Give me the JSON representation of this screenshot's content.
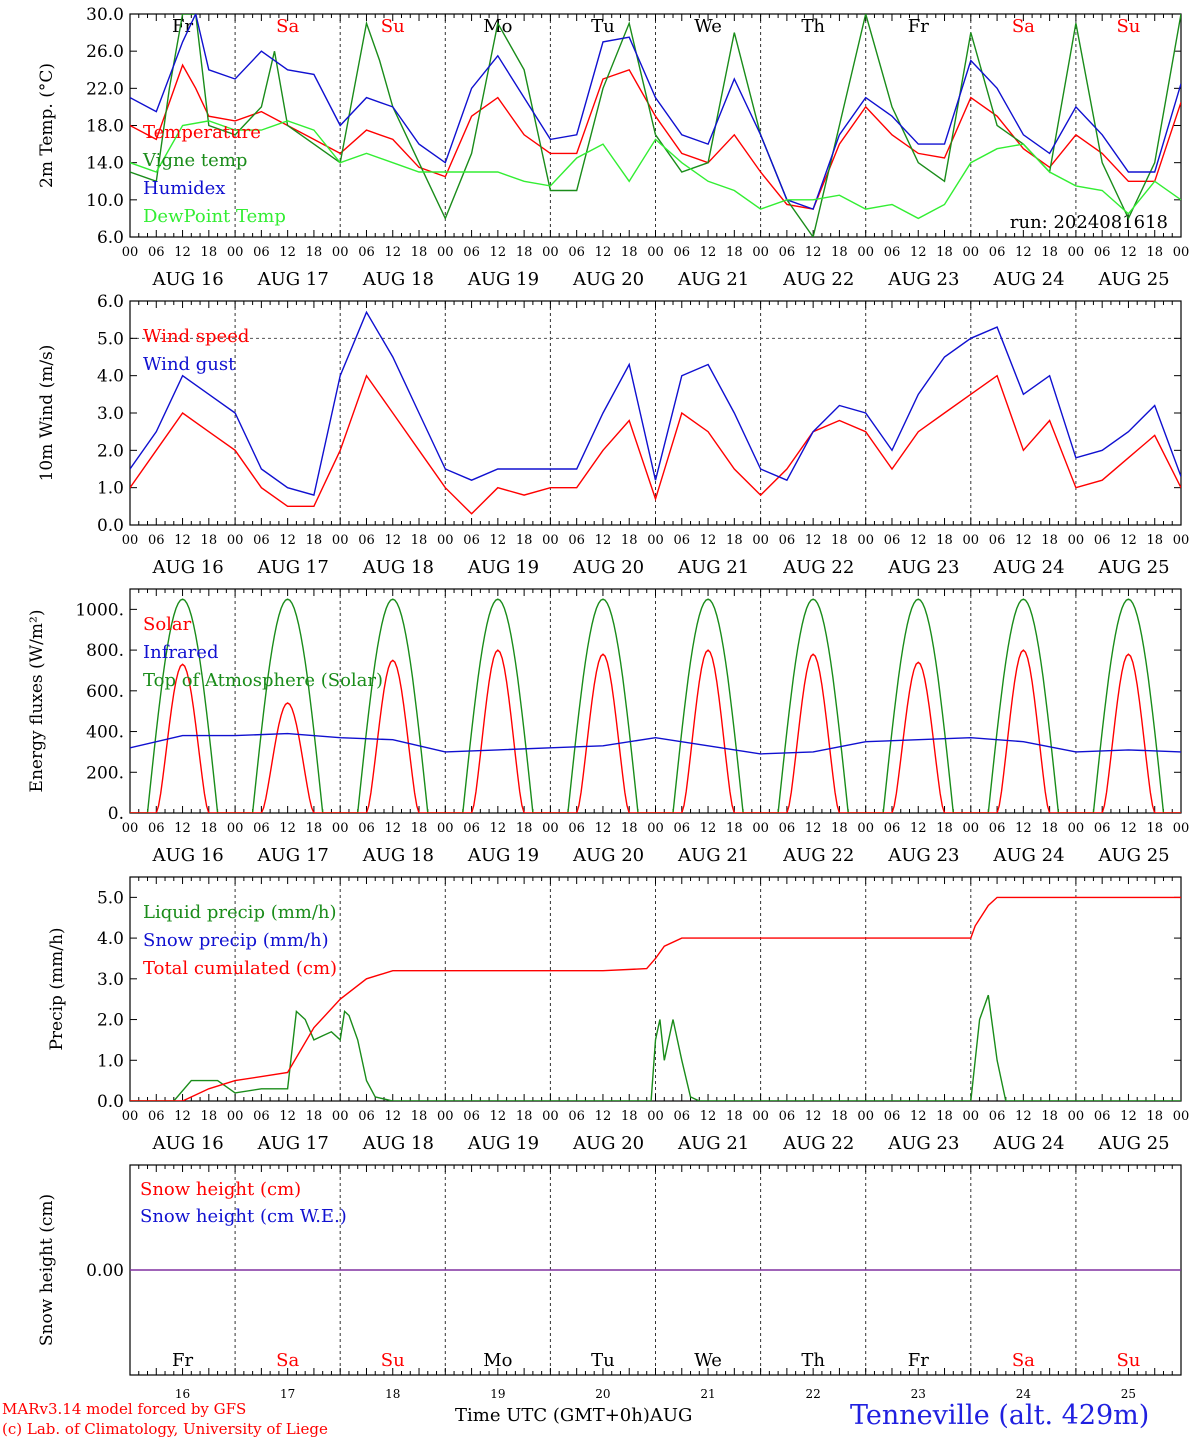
{
  "run_label": "run: 2024081618",
  "footer": {
    "model": "MARv3.14 model forced by GFS",
    "lab": "(c) Lab. of Climatology, University of Liege",
    "xaxis_title": "Time UTC (GMT+0h)",
    "month": "AUG",
    "station": "Tenneville (alt. 429m)"
  },
  "days": {
    "labels": [
      "Fr",
      "Sa",
      "Su",
      "Mo",
      "Tu",
      "We",
      "Th",
      "Fr",
      "Sa",
      "Su"
    ],
    "weekend": [
      false,
      true,
      true,
      false,
      false,
      false,
      false,
      false,
      true,
      true
    ],
    "dates": [
      "AUG 16",
      "AUG 17",
      "AUG 18",
      "AUG 19",
      "AUG 20",
      "AUG 21",
      "AUG 22",
      "AUG 23",
      "AUG 24",
      "AUG 25"
    ],
    "numbers": [
      "16",
      "17",
      "18",
      "19",
      "20",
      "21",
      "22",
      "23",
      "24",
      "25"
    ],
    "hour_ticks": [
      "00",
      "06",
      "12",
      "18"
    ]
  },
  "colors": {
    "red": "#ff0000",
    "green": "#1a8c1a",
    "blue": "#1010d0",
    "lightgreen": "#33ee33",
    "purple": "#8030a0"
  },
  "chart_data": [
    {
      "id": "temp",
      "type": "line",
      "ylabel": "2m Temp. (°C)",
      "ylim": [
        6,
        30
      ],
      "yticks": [
        "6.0",
        "10.0",
        "14.0",
        "18.0",
        "22.0",
        "26.0",
        "30.0"
      ],
      "legend": [
        "Temperature",
        "Vigne temp",
        "Humidex",
        "DewPoint Temp"
      ],
      "series": [
        {
          "name": "Temperature",
          "color": "red",
          "x": [
            0,
            6,
            12,
            15,
            18,
            24,
            30,
            36,
            42,
            48,
            54,
            60,
            66,
            72,
            78,
            84,
            90,
            96,
            102,
            108,
            114,
            120,
            126,
            132,
            138,
            144,
            150,
            156,
            162,
            168,
            174,
            180,
            186,
            192,
            198,
            204,
            210,
            216,
            222,
            228,
            234,
            240
          ],
          "y": [
            18,
            16.5,
            24.5,
            22,
            19,
            18.5,
            19.5,
            18,
            16.5,
            15,
            17.5,
            16.5,
            13.5,
            12.5,
            19,
            21,
            17,
            15,
            15,
            23,
            24,
            19,
            15,
            14,
            17,
            13,
            9.5,
            9,
            16,
            20,
            17,
            15,
            14.5,
            21,
            19,
            15.5,
            13.5,
            17,
            15,
            12,
            12,
            20.5
          ]
        },
        {
          "name": "Vigne temp",
          "color": "green",
          "x": [
            0,
            6,
            9,
            12,
            15,
            18,
            24,
            30,
            33,
            36,
            42,
            48,
            54,
            57,
            60,
            66,
            72,
            78,
            84,
            90,
            96,
            102,
            108,
            114,
            120,
            126,
            132,
            138,
            144,
            150,
            156,
            162,
            168,
            174,
            180,
            186,
            192,
            198,
            204,
            210,
            216,
            222,
            228,
            234,
            240
          ],
          "y": [
            13,
            12,
            22,
            30,
            30,
            18,
            17,
            20,
            26,
            18,
            16,
            14,
            29,
            25,
            20,
            14,
            8,
            15,
            29,
            24,
            11,
            11,
            22,
            29,
            17,
            13,
            14,
            28,
            17,
            10,
            6,
            18,
            30,
            20,
            14,
            12,
            28,
            18,
            16,
            13,
            29,
            14,
            8,
            14,
            30
          ]
        },
        {
          "name": "Humidex",
          "color": "blue",
          "x": [
            0,
            6,
            12,
            15,
            18,
            24,
            30,
            36,
            42,
            48,
            54,
            60,
            66,
            72,
            78,
            84,
            90,
            96,
            102,
            108,
            114,
            120,
            126,
            132,
            138,
            144,
            150,
            156,
            162,
            168,
            174,
            180,
            186,
            192,
            198,
            204,
            210,
            216,
            222,
            228,
            234,
            240
          ],
          "y": [
            21,
            19.5,
            27,
            30,
            24,
            23,
            26,
            24,
            23.5,
            18,
            21,
            20,
            16,
            14,
            22,
            25.5,
            21,
            16.5,
            17,
            27,
            27.5,
            21,
            17,
            16,
            23,
            17,
            10,
            9,
            17,
            21,
            19,
            16,
            16,
            25,
            22,
            17,
            15,
            20,
            17,
            13,
            13,
            22.5
          ]
        },
        {
          "name": "DewPoint Temp",
          "color": "lightgreen",
          "x": [
            0,
            6,
            12,
            18,
            24,
            30,
            36,
            42,
            48,
            54,
            60,
            66,
            72,
            78,
            84,
            90,
            96,
            102,
            108,
            114,
            120,
            126,
            132,
            138,
            144,
            150,
            156,
            162,
            168,
            174,
            180,
            186,
            192,
            198,
            204,
            210,
            216,
            222,
            228,
            234,
            240
          ],
          "y": [
            14,
            13,
            18,
            18.5,
            17.5,
            17.5,
            18.5,
            17.5,
            14,
            15,
            14,
            13,
            13,
            13,
            13,
            12,
            11.5,
            14.5,
            16,
            12,
            16.5,
            14,
            12,
            11,
            9,
            10,
            10,
            10.5,
            9,
            9.5,
            8,
            9.5,
            14,
            15.5,
            16,
            13,
            11.5,
            11,
            8.5,
            12,
            10
          ]
        }
      ]
    },
    {
      "id": "wind",
      "type": "line",
      "ylabel": "10m Wind (m/s)",
      "ylim": [
        0,
        6
      ],
      "yticks": [
        "0.0",
        "1.0",
        "2.0",
        "3.0",
        "4.0",
        "5.0",
        "6.0"
      ],
      "reference_line": 5,
      "legend": [
        "Wind speed",
        "Wind gust"
      ],
      "series": [
        {
          "name": "Wind speed",
          "color": "red",
          "x": [
            0,
            6,
            12,
            18,
            24,
            30,
            36,
            42,
            48,
            54,
            60,
            66,
            72,
            78,
            84,
            90,
            96,
            102,
            108,
            114,
            120,
            126,
            132,
            138,
            144,
            150,
            156,
            162,
            168,
            174,
            180,
            186,
            192,
            198,
            204,
            210,
            216,
            222,
            228,
            234,
            240
          ],
          "y": [
            1,
            2,
            3,
            2.5,
            2,
            1,
            0.5,
            0.5,
            2,
            4,
            3,
            2,
            1,
            0.3,
            1,
            0.8,
            1,
            1,
            2,
            2.8,
            0.7,
            3,
            2.5,
            1.5,
            0.8,
            1.5,
            2.5,
            2.8,
            2.5,
            1.5,
            2.5,
            3,
            3.5,
            4,
            2,
            2.8,
            1,
            1.2,
            1.8,
            2.4,
            1
          ]
        },
        {
          "name": "Wind gust",
          "color": "blue",
          "x": [
            0,
            6,
            12,
            18,
            24,
            30,
            36,
            42,
            48,
            54,
            60,
            66,
            72,
            78,
            84,
            90,
            96,
            102,
            108,
            114,
            120,
            126,
            132,
            138,
            144,
            150,
            156,
            162,
            168,
            174,
            180,
            186,
            192,
            198,
            204,
            210,
            216,
            222,
            228,
            234,
            240
          ],
          "y": [
            1.5,
            2.5,
            4,
            3.5,
            3,
            1.5,
            1,
            0.8,
            4,
            5.7,
            4.5,
            3,
            1.5,
            1.2,
            1.5,
            1.5,
            1.5,
            1.5,
            3,
            4.3,
            1.2,
            4,
            4.3,
            3,
            1.5,
            1.2,
            2.5,
            3.2,
            3,
            2,
            3.5,
            4.5,
            5,
            5.3,
            3.5,
            4,
            1.8,
            2,
            2.5,
            3.2,
            1.3
          ]
        }
      ]
    },
    {
      "id": "energy",
      "type": "line",
      "ylabel": "Energy fluxes (W/m²)",
      "ylim": [
        0,
        1100
      ],
      "yticks": [
        "0.",
        "200.",
        "400.",
        "600.",
        "800.",
        "1000."
      ],
      "legend": [
        "Solar",
        "Infrared",
        "Top of Atmosphere (Solar)"
      ],
      "series": [
        {
          "name": "Top of Atmosphere (Solar)",
          "color": "green",
          "peak": 1050
        },
        {
          "name": "Solar",
          "color": "red",
          "day_peaks": [
            730,
            540,
            750,
            800,
            780,
            800,
            780,
            740,
            800,
            780
          ]
        },
        {
          "name": "Infrared",
          "color": "blue",
          "x": [
            0,
            12,
            24,
            36,
            48,
            60,
            72,
            84,
            96,
            108,
            120,
            132,
            144,
            156,
            168,
            180,
            192,
            204,
            216,
            228,
            240
          ],
          "y": [
            320,
            380,
            380,
            390,
            370,
            360,
            300,
            310,
            320,
            330,
            370,
            330,
            290,
            300,
            350,
            360,
            370,
            350,
            300,
            310,
            300
          ]
        }
      ]
    },
    {
      "id": "precip",
      "type": "line",
      "ylabel": "Precip (mm/h)",
      "ylim": [
        0,
        5.5
      ],
      "yticks": [
        "0.0",
        "1.0",
        "2.0",
        "3.0",
        "4.0",
        "5.0"
      ],
      "legend": [
        "Liquid precip (mm/h)",
        "Snow precip (mm/h)",
        "Total cumulated (cm)"
      ],
      "series": [
        {
          "name": "Liquid precip (mm/h)",
          "color": "green",
          "x": [
            0,
            10,
            14,
            20,
            24,
            30,
            36,
            38,
            40,
            42,
            44,
            46,
            48,
            49,
            50,
            52,
            54,
            56,
            60,
            66,
            72,
            96,
            119,
            120,
            121,
            122,
            124,
            126,
            128,
            130,
            132,
            144,
            192,
            193,
            194,
            196,
            198,
            200,
            202,
            240
          ],
          "y": [
            0,
            0,
            0.5,
            0.5,
            0.2,
            0.3,
            0.3,
            2.2,
            2,
            1.5,
            1.6,
            1.7,
            1.5,
            2.2,
            2.1,
            1.5,
            0.5,
            0.1,
            0,
            0,
            0,
            0,
            0,
            1.5,
            2,
            1,
            2,
            1,
            0.1,
            0,
            0,
            0,
            0,
            1,
            2,
            2.6,
            1,
            0,
            0,
            0
          ]
        },
        {
          "name": "Total cumulated (cm)",
          "color": "red",
          "x": [
            0,
            12,
            18,
            24,
            30,
            36,
            42,
            48,
            54,
            60,
            96,
            108,
            118,
            120,
            122,
            126,
            132,
            156,
            180,
            192,
            193,
            196,
            198,
            204,
            240
          ],
          "y": [
            0,
            0,
            0.3,
            0.5,
            0.6,
            0.7,
            1.8,
            2.5,
            3,
            3.2,
            3.2,
            3.2,
            3.25,
            3.5,
            3.8,
            4,
            4,
            4,
            4,
            4,
            4.3,
            4.8,
            5,
            5,
            5
          ]
        }
      ]
    },
    {
      "id": "snow",
      "type": "line",
      "ylabel": "Snow height (cm)",
      "ylim": [
        -1,
        1
      ],
      "yticks": [
        "0.00"
      ],
      "legend": [
        "Snow height (cm)",
        "Snow height (cm W.E.)"
      ],
      "series": [
        {
          "name": "Snow height (cm W.E.)",
          "color": "purple",
          "x": [
            0,
            240
          ],
          "y": [
            0,
            0
          ]
        }
      ]
    }
  ]
}
